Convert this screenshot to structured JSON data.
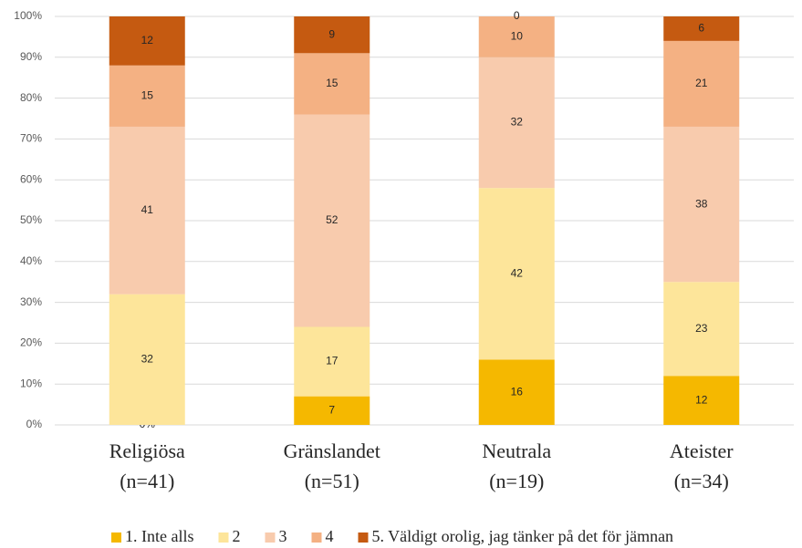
{
  "chart_data": {
    "type": "stacked_bar",
    "categories": [
      [
        "Religiösa",
        "(n=41)"
      ],
      [
        "Gränslandet",
        "(n=51)"
      ],
      [
        "Neutrala",
        "(n=19)"
      ],
      [
        "Ateister",
        "(n=34)"
      ]
    ],
    "series": [
      {
        "name": "1. Inte alls",
        "color": "#f5b800",
        "values": [
          0,
          7,
          16,
          12
        ],
        "value_labels": [
          "0%",
          "7",
          "16",
          "12"
        ]
      },
      {
        "name": "2",
        "color": "#fde59a",
        "values": [
          32,
          17,
          42,
          23
        ]
      },
      {
        "name": "3",
        "color": "#f8cbad",
        "values": [
          41,
          52,
          32,
          38
        ]
      },
      {
        "name": "4",
        "color": "#f4b183",
        "values": [
          15,
          15,
          10,
          21
        ]
      },
      {
        "name": "5. Väldigt orolig, jag tänker på det för jämnan",
        "color": "#c55a11",
        "values": [
          12,
          9,
          0,
          6
        ]
      }
    ],
    "ylim": [
      0,
      100
    ],
    "yticks": [
      {
        "value": 0,
        "label": "0%"
      },
      {
        "value": 10,
        "label": "10%"
      },
      {
        "value": 20,
        "label": "20%"
      },
      {
        "value": 30,
        "label": "30%"
      },
      {
        "value": 40,
        "label": "40%"
      },
      {
        "value": 50,
        "label": "50%"
      },
      {
        "value": 60,
        "label": "60%"
      },
      {
        "value": 70,
        "label": "70%"
      },
      {
        "value": 80,
        "label": "80%"
      },
      {
        "value": 90,
        "label": "90%"
      },
      {
        "value": 100,
        "label": "100%"
      }
    ],
    "grid": true,
    "legend": "bottom"
  }
}
